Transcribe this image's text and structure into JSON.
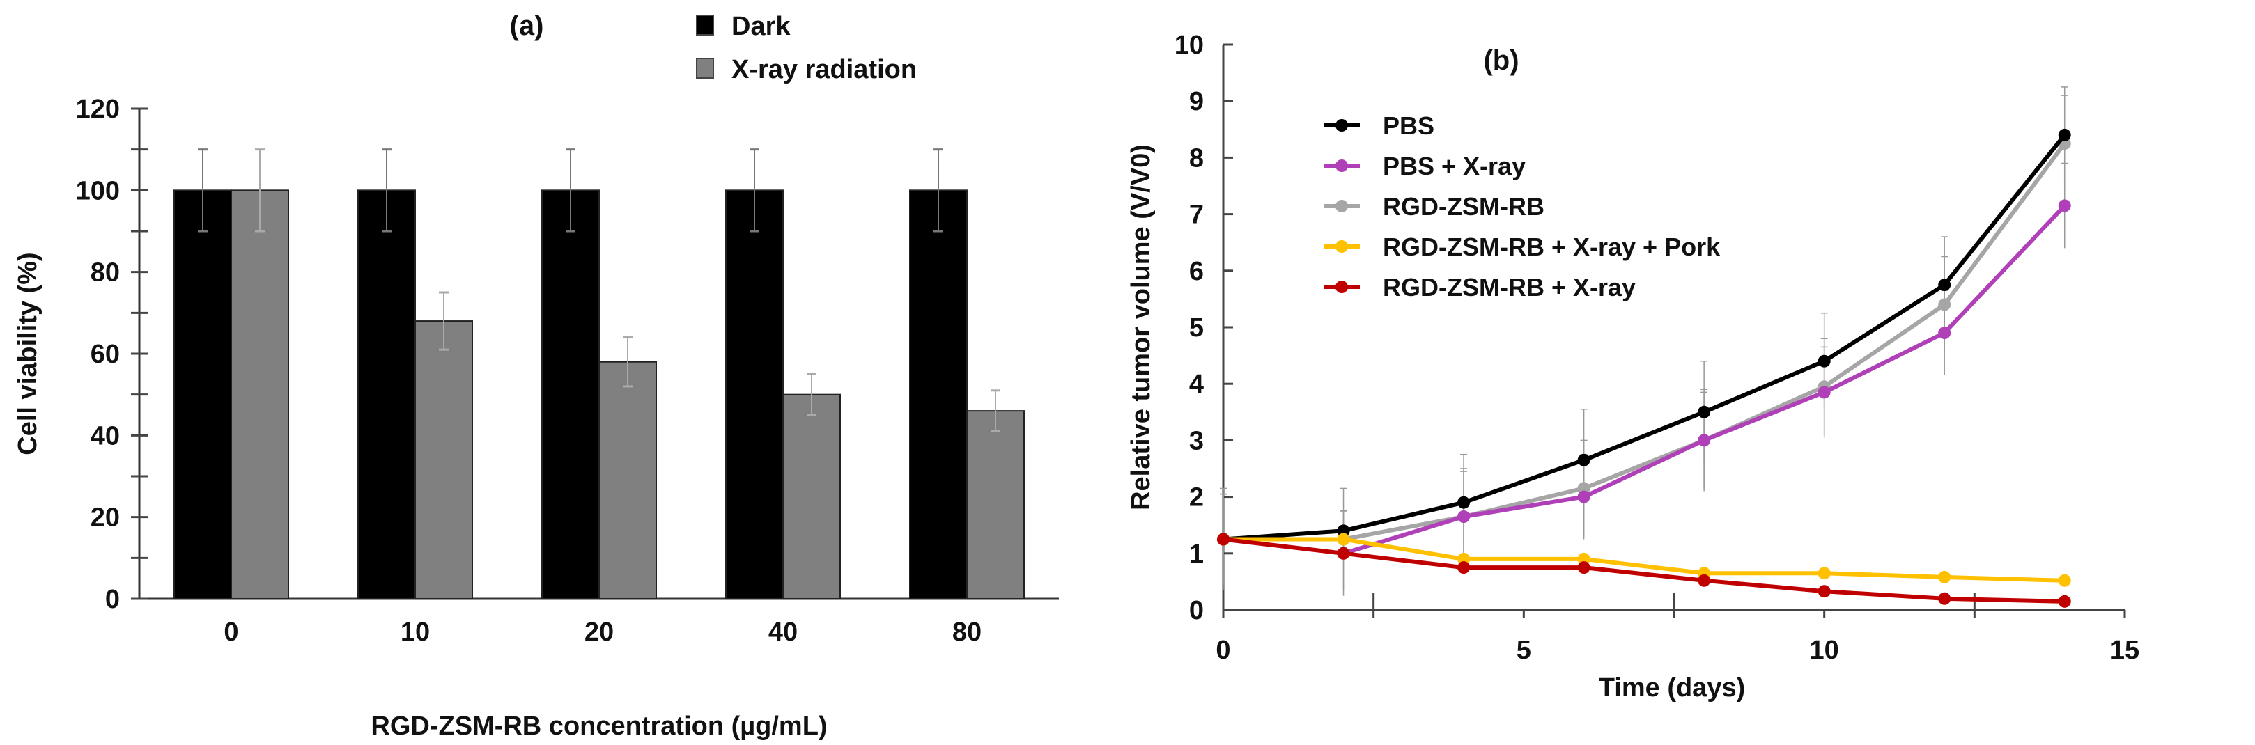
{
  "chart_data": [
    {
      "type": "bar",
      "title": "(a)",
      "xlabel": "RGD-ZSM-RB concentration (µg/mL)",
      "ylabel": "Cell viability (%)",
      "ylim": [
        0,
        120
      ],
      "yticks": [
        0,
        20,
        40,
        60,
        80,
        100,
        120
      ],
      "categories": [
        "0",
        "10",
        "20",
        "40",
        "80"
      ],
      "legend_position": "top-right",
      "series": [
        {
          "name": "Dark",
          "color": "#000000",
          "values": [
            100,
            100,
            100,
            100,
            100
          ],
          "errors": [
            10,
            10,
            10,
            10,
            10
          ]
        },
        {
          "name": "X-ray radiation",
          "color": "#808080",
          "values": [
            100,
            68,
            58,
            50,
            46
          ],
          "errors": [
            10,
            7,
            6,
            5,
            5
          ]
        }
      ]
    },
    {
      "type": "line",
      "title": "(b)",
      "xlabel": "Time (days)",
      "ylabel": "Relative tumor volume (V/V0)",
      "xlim": [
        0,
        15
      ],
      "ylim": [
        0,
        10
      ],
      "xticks": [
        0,
        5,
        10,
        15
      ],
      "yticks": [
        0,
        1,
        2,
        3,
        4,
        5,
        6,
        7,
        8,
        9,
        10
      ],
      "legend_position": "top-left",
      "x": [
        0,
        2,
        4,
        6,
        8,
        10,
        12,
        14
      ],
      "series": [
        {
          "name": "PBS",
          "color": "#000000",
          "values": [
            1.25,
            1.4,
            1.9,
            2.65,
            3.5,
            4.4,
            5.75,
            8.4
          ],
          "errors": [
            0.9,
            0.35,
            0.85,
            0.9,
            0.9,
            0.85,
            0.85,
            0.85
          ]
        },
        {
          "name": "PBS + X-ray",
          "color": "#b040b8",
          "values": [
            1.25,
            1.0,
            1.65,
            2.0,
            3.0,
            3.85,
            4.9,
            7.15
          ],
          "errors": [
            0.8,
            0.75,
            0.8,
            0.75,
            0.85,
            0.8,
            0.75,
            0.75
          ]
        },
        {
          "name": "RGD-ZSM-RB",
          "color": "#a6a6a6",
          "values": [
            1.25,
            1.25,
            1.65,
            2.15,
            3.0,
            3.95,
            5.4,
            8.25
          ],
          "errors": [
            0.8,
            0.9,
            0.85,
            0.85,
            0.9,
            0.85,
            0.85,
            0.85
          ]
        },
        {
          "name": "RGD-ZSM-RB + X-ray + Pork",
          "color": "#ffc000",
          "values": [
            1.25,
            1.25,
            0.9,
            0.9,
            0.65,
            0.65,
            0.58,
            0.52
          ],
          "errors": [
            0.1,
            0.1,
            0.08,
            0.08,
            0.06,
            0.06,
            0.05,
            0.05
          ]
        },
        {
          "name": "RGD-ZSM-RB + X-ray",
          "color": "#c00000",
          "values": [
            1.25,
            1.0,
            0.75,
            0.75,
            0.52,
            0.33,
            0.2,
            0.15
          ],
          "errors": [
            0.1,
            0.1,
            0.08,
            0.08,
            0.06,
            0.05,
            0.04,
            0.04
          ]
        }
      ]
    }
  ]
}
